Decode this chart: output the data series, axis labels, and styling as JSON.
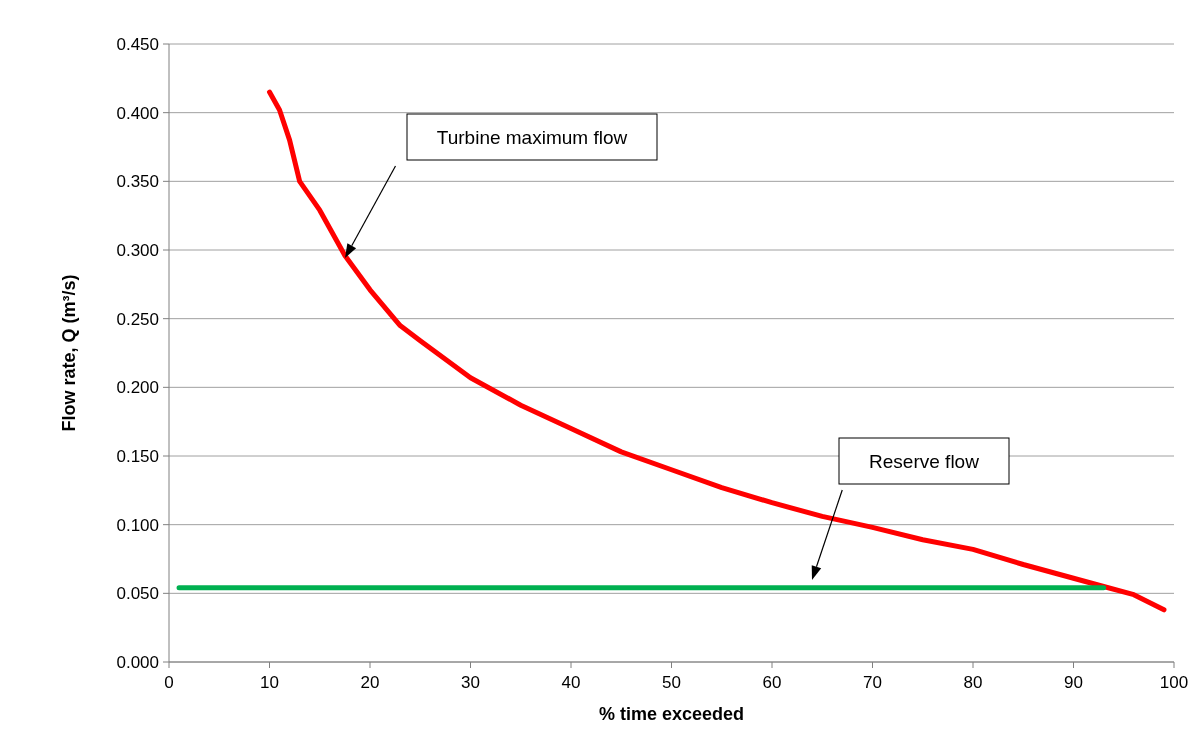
{
  "chart_data": {
    "type": "line",
    "xlabel": "% time exceeded",
    "ylabel": "Flow rate, Q (m³/s)",
    "xlim": [
      0,
      100
    ],
    "xticks": [
      0,
      10,
      20,
      30,
      40,
      50,
      60,
      70,
      80,
      90,
      100
    ],
    "ylim": [
      0,
      0.45
    ],
    "yticks": [
      {
        "value": 0,
        "label": "0.000"
      },
      {
        "value": 0.05,
        "label": "0.050"
      },
      {
        "value": 0.1,
        "label": "0.100"
      },
      {
        "value": 0.15,
        "label": "0.150"
      },
      {
        "value": 0.2,
        "label": "0.200"
      },
      {
        "value": 0.25,
        "label": "0.250"
      },
      {
        "value": 0.3,
        "label": "0.300"
      },
      {
        "value": 0.35,
        "label": "0.350"
      },
      {
        "value": 0.4,
        "label": "0.400"
      },
      {
        "value": 0.45,
        "label": "0.450"
      }
    ],
    "grid": "y",
    "marker": "none",
    "line_style": "solid",
    "series": [
      {
        "color": "#ff0000",
        "x": [
          10,
          11,
          12,
          13,
          15,
          17.5,
          20,
          23,
          25,
          30,
          35,
          40,
          45,
          50,
          55,
          60,
          65,
          70,
          75,
          80,
          85,
          90,
          93,
          96,
          99
        ],
        "values": [
          0.415,
          0.402,
          0.38,
          0.35,
          0.329,
          0.296,
          0.271,
          0.245,
          0.234,
          0.207,
          0.187,
          0.17,
          0.153,
          0.14,
          0.127,
          0.116,
          0.106,
          0.098,
          0.089,
          0.082,
          0.071,
          0.061,
          0.055,
          0.049,
          0.038
        ]
      },
      {
        "color": "#00b050",
        "x": [
          1,
          93
        ],
        "values": [
          0.054,
          0.054
        ]
      }
    ],
    "annotations": [
      "Turbine maximum flow",
      "Reserve flow"
    ]
  }
}
